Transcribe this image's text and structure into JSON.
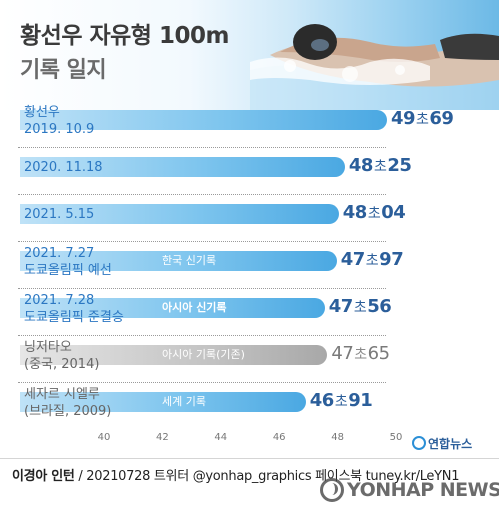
{
  "title": "황선우 자유형 100m",
  "subtitle": "기록 일지",
  "colors": {
    "bar_blue": "#4aa8e2",
    "bar_gray": "#a8a8a8",
    "value_blue": "#2b5e9a",
    "accent": "#2b77c2"
  },
  "chart_data": {
    "type": "bar",
    "orientation": "horizontal",
    "xlim": [
      40,
      50
    ],
    "x_ticks": [
      "40",
      "42",
      "44",
      "46",
      "48",
      "50"
    ],
    "unit_label": "초",
    "grid": false,
    "rows": [
      {
        "labels": [
          "황선우",
          "2019. 10.9"
        ],
        "value": 49.69,
        "value_text": [
          "49",
          "69"
        ],
        "badge": "",
        "style": "blue",
        "label_color": "blue"
      },
      {
        "labels": [
          "2020. 11.18"
        ],
        "value": 48.25,
        "value_text": [
          "48",
          "25"
        ],
        "badge": "",
        "style": "blue",
        "label_color": "blue"
      },
      {
        "labels": [
          "2021. 5.15"
        ],
        "value": 48.04,
        "value_text": [
          "48",
          "04"
        ],
        "badge": "",
        "style": "blue",
        "label_color": "blue"
      },
      {
        "labels": [
          "2021. 7.27",
          "도쿄올림픽 예선"
        ],
        "value": 47.97,
        "value_text": [
          "47",
          "97"
        ],
        "badge": "한국 신기록",
        "style": "blue",
        "label_color": "blue"
      },
      {
        "labels": [
          "2021. 7.28",
          "도쿄올림픽 준결승"
        ],
        "value": 47.56,
        "value_text": [
          "47",
          "56"
        ],
        "badge": "아시아 신기록",
        "style": "blue",
        "label_color": "blue"
      },
      {
        "labels": [
          "닝저타오",
          "(중국, 2014)"
        ],
        "value": 47.65,
        "value_text": [
          "47",
          "65"
        ],
        "badge": "아시아 기록(기존)",
        "style": "gray",
        "label_color": "gray"
      },
      {
        "labels": [
          "세자르 시엘루",
          "(브라질, 2009)"
        ],
        "value": 46.91,
        "value_text": [
          "46",
          "91"
        ],
        "badge": "세계 기록",
        "style": "blue",
        "label_color": "gray"
      }
    ]
  },
  "logo": {
    "text": "연합뉴스"
  },
  "footer": {
    "author": "이경아 인턴",
    "credit": " / 20210728 트위터 @yonhap_graphics  페이스북 tuney.kr/LeYN1"
  },
  "watermark": {
    "text": "YONHAP NEWS"
  }
}
